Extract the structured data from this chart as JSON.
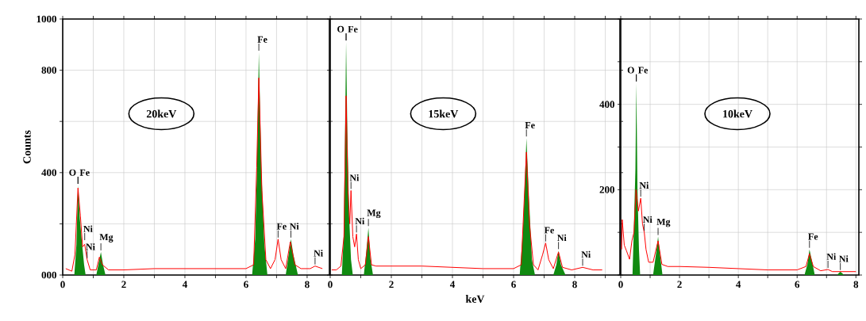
{
  "chart_data": [
    {
      "type": "line",
      "ylabel": "Counts",
      "xlim": [
        0,
        8.73
      ],
      "ylim": [
        0,
        1000
      ],
      "grid": true,
      "xticks": [
        0,
        {
          "value": 1,
          "label": null
        },
        2,
        {
          "value": 3,
          "label": null
        },
        4,
        {
          "value": 5,
          "label": null
        },
        6,
        {
          "value": 7,
          "label": null
        },
        8
      ],
      "yticks": [
        {
          "value": 0,
          "label": "000"
        },
        {
          "value": 200,
          "label": null
        },
        400,
        {
          "value": 600,
          "label": null
        },
        800,
        1000
      ],
      "annotations": [
        "20keV",
        {
          "text": "O",
          "x": 0.5,
          "y": 350
        },
        {
          "text": "Fe",
          "x": 0.5,
          "y": 350
        },
        {
          "text": "Ni",
          "x": 0.72,
          "y": 130
        },
        {
          "text": "Ni",
          "x": 0.8,
          "y": 60
        },
        {
          "text": "Mg",
          "x": 1.25,
          "y": 90
        },
        {
          "text": "Fe",
          "x": 6.42,
          "y": 870
        },
        {
          "text": "Fe",
          "x": 7.05,
          "y": 140
        },
        {
          "text": "Ni",
          "x": 7.47,
          "y": 140
        },
        {
          "text": "Ni",
          "x": 8.26,
          "y": 35
        }
      ],
      "series": [
        {
          "type": "area",
          "color": "#108a10",
          "x": [
            0.38,
            0.45,
            0.5,
            0.56,
            0.62,
            0.7,
            0.75,
            1.1,
            1.2,
            1.25,
            1.32,
            1.4,
            6.2,
            6.3,
            6.35,
            6.42,
            6.5,
            6.6,
            6.7,
            7.3,
            7.42,
            7.47,
            7.55,
            7.7
          ],
          "values": [
            0,
            120,
            350,
            220,
            140,
            40,
            0,
            0,
            60,
            90,
            40,
            0,
            0,
            140,
            380,
            870,
            420,
            120,
            0,
            0,
            100,
            140,
            80,
            0
          ]
        },
        {
          "color": "#ff0000",
          "x": [
            0.1,
            0.3,
            0.4,
            0.5,
            0.58,
            0.65,
            0.72,
            0.8,
            0.9,
            1.1,
            1.2,
            1.3,
            1.5,
            2,
            3,
            4,
            5,
            6,
            6.25,
            6.35,
            6.42,
            6.52,
            6.65,
            6.8,
            6.95,
            7.05,
            7.15,
            7.3,
            7.45,
            7.6,
            7.8,
            8.1,
            8.26,
            8.5
          ],
          "values": [
            25,
            15,
            80,
            340,
            230,
            110,
            120,
            60,
            20,
            20,
            70,
            40,
            20,
            20,
            25,
            25,
            25,
            25,
            40,
            420,
            770,
            330,
            60,
            25,
            60,
            140,
            60,
            25,
            130,
            40,
            25,
            25,
            35,
            25
          ]
        }
      ]
    },
    {
      "type": "line",
      "xlabel": "keV",
      "xlim": [
        0,
        9.48
      ],
      "ylim": [
        0,
        1000
      ],
      "grid": true,
      "tick_labels": "x",
      "xticks": [
        0,
        {
          "value": 1,
          "label": null
        },
        2,
        {
          "value": 3,
          "label": null
        },
        4,
        {
          "value": 5,
          "label": null
        },
        6,
        {
          "value": 7,
          "label": null
        },
        8,
        {
          "value": 9,
          "label": null
        }
      ],
      "yticks": [
        0,
        200,
        400,
        600,
        800,
        1000
      ],
      "annotations": [
        "15keV",
        {
          "text": "O",
          "x": 0.52,
          "y": 910
        },
        {
          "text": "Fe",
          "x": 0.52,
          "y": 910
        },
        {
          "text": "Ni",
          "x": 0.68,
          "y": 330
        },
        {
          "text": "Ni",
          "x": 0.86,
          "y": 160
        },
        {
          "text": "Mg",
          "x": 1.25,
          "y": 185
        },
        {
          "text": "Fe",
          "x": 6.42,
          "y": 535
        },
        {
          "text": "Fe",
          "x": 7.05,
          "y": 125
        },
        {
          "text": "Ni",
          "x": 7.47,
          "y": 95
        },
        {
          "text": "Ni",
          "x": 8.26,
          "y": 30
        }
      ],
      "series": [
        {
          "type": "area",
          "color": "#108a10",
          "x": [
            0.38,
            0.44,
            0.48,
            0.52,
            0.56,
            0.62,
            0.68,
            0.74,
            1.1,
            1.18,
            1.25,
            1.32,
            1.4,
            6.2,
            6.3,
            6.36,
            6.42,
            6.5,
            6.6,
            6.7,
            7.3,
            7.4,
            7.47,
            7.55,
            7.7
          ],
          "values": [
            0,
            150,
            500,
            910,
            560,
            230,
            60,
            0,
            0,
            90,
            185,
            60,
            0,
            0,
            160,
            330,
            535,
            310,
            60,
            0,
            0,
            40,
            95,
            40,
            0
          ]
        },
        {
          "color": "#ff0000",
          "x": [
            0.05,
            0.2,
            0.35,
            0.45,
            0.52,
            0.58,
            0.64,
            0.68,
            0.74,
            0.8,
            0.86,
            0.92,
            1.0,
            1.15,
            1.25,
            1.35,
            1.5,
            2,
            3,
            4,
            5,
            6,
            6.25,
            6.35,
            6.42,
            6.52,
            6.65,
            6.8,
            6.95,
            7.05,
            7.15,
            7.3,
            7.47,
            7.6,
            7.9,
            8.26,
            8.6,
            8.9
          ],
          "values": [
            20,
            20,
            35,
            150,
            700,
            330,
            200,
            330,
            150,
            110,
            160,
            60,
            25,
            40,
            150,
            40,
            35,
            35,
            35,
            30,
            25,
            25,
            40,
            300,
            480,
            200,
            40,
            20,
            80,
            125,
            60,
            25,
            90,
            30,
            20,
            30,
            20,
            20
          ]
        }
      ]
    },
    {
      "type": "line",
      "xlim": [
        0,
        8.1
      ],
      "ylim": [
        0,
        600
      ],
      "grid": true,
      "xticks": [
        0,
        {
          "value": 1,
          "label": null
        },
        2,
        {
          "value": 3,
          "label": null
        },
        4,
        {
          "value": 5,
          "label": null
        },
        6,
        {
          "value": 7,
          "label": null
        },
        8
      ],
      "yticks": [
        {
          "value": 0,
          "label": null
        },
        {
          "value": 100,
          "label": null
        },
        200,
        {
          "value": 300,
          "label": null
        },
        400,
        {
          "value": 500,
          "label": null
        },
        {
          "value": 600,
          "label": null
        }
      ],
      "annotations": [
        "10keV",
        {
          "text": "O",
          "x": 0.53,
          "y": 450
        },
        {
          "text": "Fe",
          "x": 0.53,
          "y": 450
        },
        {
          "text": "Ni",
          "x": 0.68,
          "y": 180
        },
        {
          "text": "Ni",
          "x": 0.8,
          "y": 100
        },
        {
          "text": "Mg",
          "x": 1.27,
          "y": 90
        },
        {
          "text": "Fe",
          "x": 6.42,
          "y": 60
        },
        {
          "text": "Ni",
          "x": 7.05,
          "y": 13
        },
        {
          "text": "Ni",
          "x": 7.47,
          "y": 8
        }
      ],
      "series": [
        {
          "type": "area",
          "color": "#108a10",
          "x": [
            0.4,
            0.45,
            0.5,
            0.53,
            0.57,
            0.62,
            0.66,
            1.1,
            1.2,
            1.27,
            1.35,
            1.42,
            6.25,
            6.35,
            6.42,
            6.5,
            6.6,
            7.35,
            7.47,
            7.6
          ],
          "values": [
            0,
            120,
            250,
            450,
            200,
            60,
            0,
            0,
            50,
            90,
            40,
            0,
            0,
            25,
            60,
            35,
            0,
            0,
            8,
            0
          ]
        },
        {
          "color": "#ff0000",
          "x": [
            0.03,
            0.05,
            0.12,
            0.2,
            0.3,
            0.38,
            0.45,
            0.52,
            0.6,
            0.68,
            0.74,
            0.8,
            0.86,
            0.95,
            1.1,
            1.27,
            1.4,
            1.6,
            2,
            3,
            4,
            5,
            6,
            6.3,
            6.42,
            6.55,
            6.8,
            7.05,
            7.2,
            7.5,
            8
          ],
          "values": [
            60,
            130,
            70,
            56,
            37,
            80,
            100,
            200,
            150,
            180,
            120,
            100,
            60,
            30,
            30,
            80,
            25,
            20,
            20,
            18,
            15,
            12,
            12,
            20,
            50,
            20,
            10,
            13,
            8,
            8,
            8
          ]
        }
      ]
    }
  ]
}
